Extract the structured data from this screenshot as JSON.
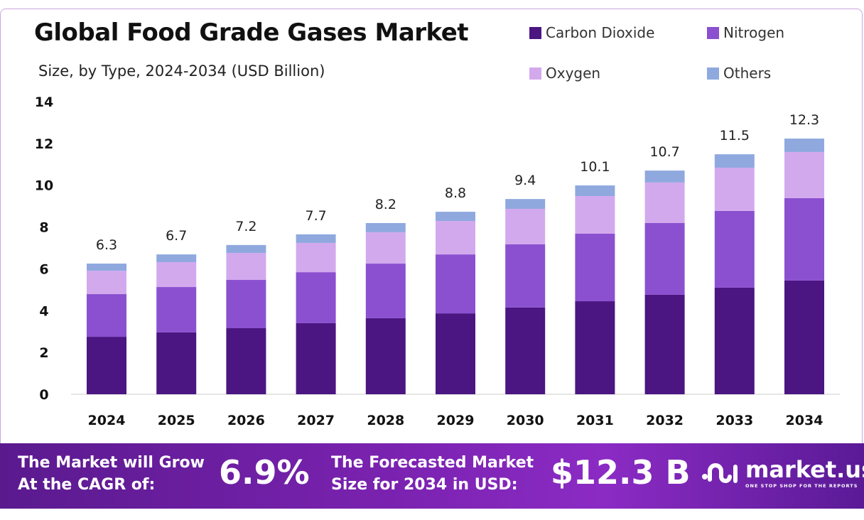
{
  "chart_data": {
    "type": "bar",
    "stacked": true,
    "title": "Global Food Grade Gases Market",
    "subtitle": "Size, by Type, 2024-2034 (USD Billion)",
    "xlabel": "",
    "ylabel": "",
    "ylim": [
      0,
      14
    ],
    "yticks": [
      "0",
      "2",
      "4",
      "6",
      "8",
      "10",
      "12",
      "14"
    ],
    "categories": [
      "2024",
      "2025",
      "2026",
      "2027",
      "2028",
      "2029",
      "2030",
      "2031",
      "2032",
      "2033",
      "2034"
    ],
    "series": [
      {
        "name": "Carbon Dioxide",
        "color": "#4b1681",
        "values": [
          2.75,
          2.96,
          3.16,
          3.4,
          3.64,
          3.87,
          4.15,
          4.45,
          4.76,
          5.1,
          5.44
        ]
      },
      {
        "name": "Nitrogen",
        "color": "#8a50d0",
        "values": [
          2.04,
          2.17,
          2.31,
          2.44,
          2.61,
          2.82,
          3.02,
          3.23,
          3.43,
          3.67,
          3.94
        ]
      },
      {
        "name": "Oxygen",
        "color": "#d3a9ee",
        "values": [
          1.12,
          1.19,
          1.29,
          1.4,
          1.5,
          1.6,
          1.7,
          1.8,
          1.94,
          2.07,
          2.21
        ]
      },
      {
        "name": "Others",
        "color": "#8fa9df",
        "values": [
          0.34,
          0.37,
          0.38,
          0.41,
          0.44,
          0.44,
          0.47,
          0.51,
          0.57,
          0.64,
          0.64
        ]
      }
    ],
    "totals": [
      "6.3",
      "6.7",
      "7.2",
      "7.7",
      "8.2",
      "8.8",
      "9.4",
      "10.1",
      "10.7",
      "11.5",
      "12.3"
    ],
    "legend_position": "top-right",
    "grid": false
  },
  "footer": {
    "cagr_text_1": "The Market will Grow",
    "cagr_text_2": "At the CAGR of:",
    "cagr_value": "6.9%",
    "forecast_text_1": "The Forecasted Market",
    "forecast_text_2": "Size for 2034 in USD:",
    "forecast_value": "$12.3 B",
    "brand": "market.us",
    "tagline": "ONE STOP SHOP FOR THE REPORTS"
  }
}
